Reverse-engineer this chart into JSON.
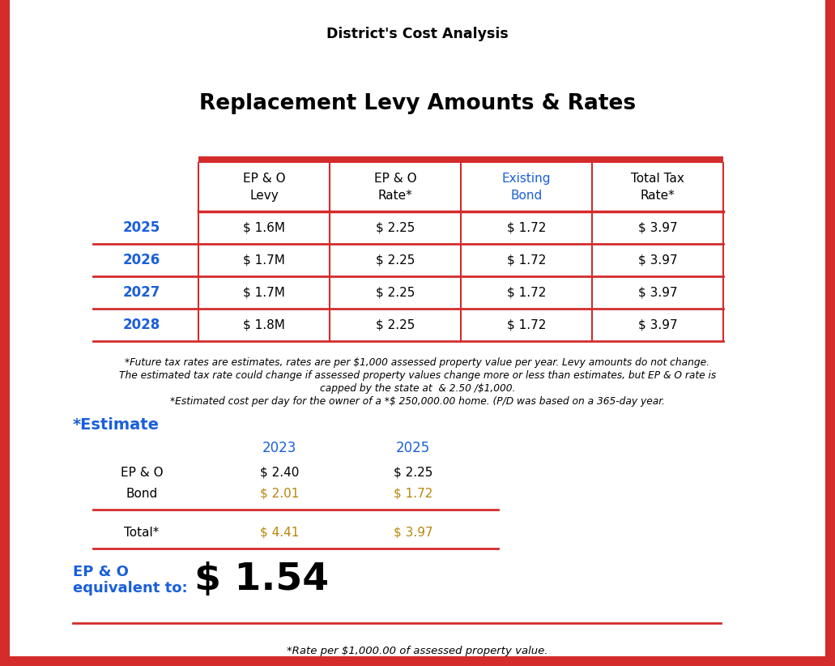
{
  "header_title": "District's Cost Analysis",
  "main_title": "Replacement Levy Amounts & Rates",
  "table_col_headers": [
    "EP & O\nLevy",
    "EP & O\nRate*",
    "Existing\nBond",
    "Total Tax\nRate*"
  ],
  "table_col_header_colors": [
    "black",
    "black",
    "#1a5fdb",
    "black"
  ],
  "table_rows": [
    [
      "2025",
      "$ 1.6M",
      "$ 2.25",
      "$ 1.72",
      "$ 3.97"
    ],
    [
      "2026",
      "$ 1.7M",
      "$ 2.25",
      "$ 1.72",
      "$ 3.97"
    ],
    [
      "2027",
      "$ 1.7M",
      "$ 2.25",
      "$ 1.72",
      "$ 3.97"
    ],
    [
      "2028",
      "$ 1.8M",
      "$ 2.25",
      "$ 1.72",
      "$ 3.97"
    ]
  ],
  "year_color": "#1a5fdb",
  "footnotes": [
    "*Future tax rates are estimates, rates are per $1,000 assessed property value per year. Levy amounts do not change.",
    "The estimated tax rate could change if assessed property values change more or less than estimates, but EP & O rate is",
    "capped by the state at  & 2.50 /$1,000.",
    "*Estimated cost per day for the owner of a *$ 250,000.00 home. (P/D was based on a 365-day year."
  ],
  "estimate_label": "*Estimate",
  "estimate_col_headers": [
    "2023",
    "2025"
  ],
  "estimate_row_labels": [
    "EP & O",
    "Bond"
  ],
  "estimate_values": [
    [
      "$ 2.40",
      "$ 2.25"
    ],
    [
      "$ 2.01",
      "$ 1.72"
    ]
  ],
  "estimate_total_label": "Total*",
  "estimate_total_values": [
    "$ 4.41",
    "$ 3.97"
  ],
  "epo_label1": "EP & O",
  "epo_label2": "equivalent to:",
  "epo_value": "$ 1.54",
  "footer_note": "*Rate per $1,000.00 of assessed property value.",
  "red_color": "#d42b2b",
  "blue_color": "#1a5fdb",
  "gold_color": "#b8860b",
  "bg_color": "#ffffff"
}
